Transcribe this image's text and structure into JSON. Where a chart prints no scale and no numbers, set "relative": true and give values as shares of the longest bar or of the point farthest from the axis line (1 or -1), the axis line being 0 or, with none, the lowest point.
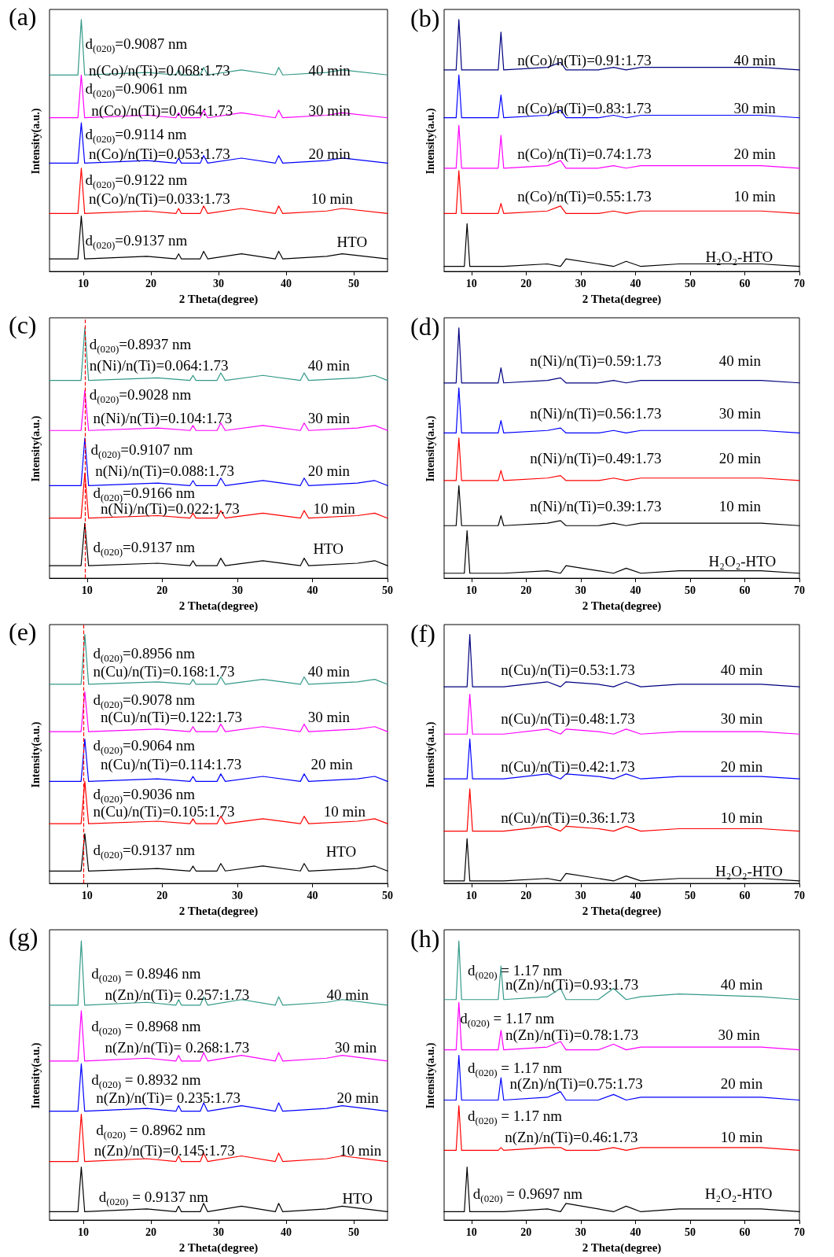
{
  "chart_data": [
    {
      "type": "line",
      "title": "(a)",
      "xlabel": "2 Theta(degree)",
      "ylabel": "Intensity(a.u.)",
      "relative": true,
      "tick_labels": "x",
      "xlim": [
        5,
        55
      ],
      "xticks": [
        10,
        20,
        30,
        40,
        50
      ],
      "x": [
        5,
        9.2,
        9.7,
        10.2,
        19.4,
        23.7,
        24.1,
        24.5,
        27.3,
        27.8,
        28.4,
        33.4,
        38.4,
        38.9,
        39.5,
        46,
        48.3,
        55
      ],
      "series": [
        {
          "color": "#000000",
          "values": [
            0.05,
            0.05,
            0.22,
            0.05,
            0.06,
            0.05,
            0.07,
            0.05,
            0.05,
            0.08,
            0.05,
            0.07,
            0.05,
            0.08,
            0.05,
            0.06,
            0.07,
            0.05
          ]
        },
        {
          "color": "#ff0000",
          "values": [
            0.23,
            0.23,
            0.41,
            0.23,
            0.24,
            0.23,
            0.25,
            0.23,
            0.23,
            0.26,
            0.23,
            0.25,
            0.23,
            0.26,
            0.23,
            0.24,
            0.25,
            0.23
          ]
        },
        {
          "color": "#0000ff",
          "values": [
            0.43,
            0.43,
            0.59,
            0.43,
            0.44,
            0.43,
            0.45,
            0.43,
            0.43,
            0.46,
            0.43,
            0.45,
            0.43,
            0.46,
            0.43,
            0.44,
            0.45,
            0.43
          ]
        },
        {
          "color": "#ff00ff",
          "values": [
            0.61,
            0.61,
            0.78,
            0.61,
            0.62,
            0.61,
            0.63,
            0.61,
            0.61,
            0.64,
            0.61,
            0.63,
            0.61,
            0.64,
            0.61,
            0.62,
            0.63,
            0.61
          ]
        },
        {
          "color": "#339988",
          "values": [
            0.78,
            0.78,
            1,
            0.78,
            0.79,
            0.78,
            0.8,
            0.78,
            0.78,
            0.81,
            0.78,
            0.8,
            0.78,
            0.81,
            0.78,
            0.79,
            0.8,
            0.78
          ]
        }
      ],
      "annotations": [
        "d$_{(020)}$=0.9087 nm",
        "n(Co)/n(Ti)=0.068:1.73",
        "40 min",
        "d$_{(020)}$=0.9061 nm",
        "n(Co)/n(Ti)=0.064:1.73",
        "30 min",
        "d$_{(020)}$=0.9114 nm",
        "n(Co)/n(Ti)=0.053:1.73",
        "20 min",
        "d$_{(020)}$=0.9122 nm",
        "n(Co)/n(Ti)=0.033:1.73",
        "10 min",
        "d$_{(020)}$=0.9137 nm",
        "HTO"
      ]
    },
    {
      "type": "line",
      "title": "(b)",
      "xlabel": "2 Theta(degree)",
      "ylabel": "Intensity(a.u.)",
      "relative": true,
      "tick_labels": "x",
      "xlim": [
        5,
        70
      ],
      "xticks": [
        10,
        20,
        30,
        40,
        50,
        60,
        70
      ],
      "x": [
        5,
        7.2,
        7.7,
        8.2,
        8.7,
        9.2,
        9.7,
        10.2,
        14.9,
        15.4,
        15.9,
        23.9,
        26.3,
        27.3,
        33.2,
        36,
        38.3,
        41,
        48,
        63,
        70
      ],
      "series": [
        {
          "color": "#000000",
          "values": [
            0.02,
            0.02,
            0.02,
            0.02,
            0.02,
            0.19,
            0.02,
            0.02,
            0.02,
            0.02,
            0.02,
            0.03,
            0.02,
            0.05,
            0.03,
            0.02,
            0.04,
            0.02,
            0.03,
            0.03,
            0.02
          ]
        },
        {
          "color": "#ff0000",
          "values": [
            0.23,
            0.23,
            0.4,
            0.23,
            0.23,
            0.23,
            0.23,
            0.23,
            0.23,
            0.27,
            0.23,
            0.24,
            0.26,
            0.23,
            0.23,
            0.24,
            0.23,
            0.24,
            0.24,
            0.24,
            0.23
          ]
        },
        {
          "color": "#ff00ff",
          "values": [
            0.41,
            0.41,
            0.58,
            0.41,
            0.41,
            0.41,
            0.41,
            0.41,
            0.41,
            0.54,
            0.41,
            0.42,
            0.44,
            0.41,
            0.41,
            0.42,
            0.41,
            0.42,
            0.42,
            0.42,
            0.41
          ]
        },
        {
          "color": "#0000ff",
          "values": [
            0.61,
            0.61,
            0.78,
            0.61,
            0.61,
            0.61,
            0.61,
            0.61,
            0.61,
            0.7,
            0.61,
            0.62,
            0.64,
            0.61,
            0.61,
            0.62,
            0.61,
            0.62,
            0.62,
            0.62,
            0.61
          ]
        },
        {
          "color": "#000080",
          "values": [
            0.8,
            0.8,
            1,
            0.8,
            0.8,
            0.8,
            0.8,
            0.8,
            0.8,
            0.95,
            0.8,
            0.81,
            0.83,
            0.8,
            0.8,
            0.81,
            0.8,
            0.81,
            0.81,
            0.81,
            0.8
          ]
        }
      ],
      "annotations": [
        "n(Co)/n(Ti)=0.91:1.73",
        "40 min",
        "n(Co)/n(Ti)=0.83:1.73",
        "30 min",
        "n(Co)/n(Ti)=0.74:1.73",
        "20 min",
        "n(Co)/n(Ti)=0.55:1.73",
        "10 min",
        "H₂O₂-HTO"
      ]
    },
    {
      "type": "line",
      "title": "(c)",
      "xlabel": "2 Theta(degree)",
      "ylabel": "Intensity(a.u.)",
      "relative": true,
      "tick_labels": "x",
      "xlim": [
        5,
        50
      ],
      "xticks": [
        10,
        20,
        30,
        40,
        50
      ],
      "x": [
        5,
        9.2,
        9.7,
        10.2,
        19.4,
        23.7,
        24.1,
        24.5,
        27.3,
        27.8,
        28.4,
        33.4,
        38.4,
        38.9,
        39.5,
        46,
        48.3,
        50
      ],
      "ref_lines": [
        {
          "axis": "x",
          "value": 9.7,
          "color": "#ff0000",
          "line_style": "dashed"
        }
      ],
      "series": [
        {
          "color": "#000000",
          "values": [
            0.05,
            0.05,
            0.22,
            0.05,
            0.06,
            0.05,
            0.07,
            0.05,
            0.05,
            0.08,
            0.05,
            0.07,
            0.05,
            0.08,
            0.05,
            0.06,
            0.07,
            0.05
          ]
        },
        {
          "color": "#ff0000",
          "values": [
            0.24,
            0.24,
            0.42,
            0.24,
            0.25,
            0.24,
            0.26,
            0.24,
            0.24,
            0.27,
            0.24,
            0.26,
            0.24,
            0.27,
            0.24,
            0.25,
            0.26,
            0.24
          ]
        },
        {
          "color": "#0000ff",
          "values": [
            0.37,
            0.37,
            0.56,
            0.37,
            0.38,
            0.37,
            0.39,
            0.37,
            0.37,
            0.4,
            0.37,
            0.39,
            0.37,
            0.4,
            0.37,
            0.38,
            0.39,
            0.37
          ]
        },
        {
          "color": "#ff00ff",
          "values": [
            0.59,
            0.59,
            0.75,
            0.59,
            0.6,
            0.59,
            0.61,
            0.59,
            0.59,
            0.62,
            0.59,
            0.61,
            0.59,
            0.62,
            0.59,
            0.6,
            0.61,
            0.59
          ]
        },
        {
          "color": "#339988",
          "values": [
            0.79,
            0.79,
            1,
            0.79,
            0.8,
            0.79,
            0.81,
            0.79,
            0.79,
            0.82,
            0.79,
            0.81,
            0.79,
            0.82,
            0.79,
            0.8,
            0.81,
            0.79
          ]
        }
      ],
      "annotations": [
        "d$_{(020)}$=0.8937 nm",
        "n(Ni)/n(Ti)=0.064:1.73",
        "40 min",
        "d$_{(020)}$=0.9028 nm",
        "n(Ni)/n(Ti)=0.104:1.73",
        "30 min",
        "d$_{(020)}$=0.9107 nm",
        "n(Ni)/n(Ti)=0.088:1.73",
        "20 min",
        "d$_{(020)}$=0.9166 nm",
        "n(Ni)/n(Ti)=0.022:1.73",
        "10 min",
        "d$_{(020)}$=0.9137 nm",
        "HTO"
      ]
    },
    {
      "type": "line",
      "title": "(d)",
      "xlabel": "2 Theta(degree)",
      "ylabel": "Intensity(a.u.)",
      "relative": true,
      "tick_labels": "x",
      "xlim": [
        5,
        70
      ],
      "xticks": [
        10,
        20,
        30,
        40,
        50,
        60,
        70
      ],
      "x": [
        5,
        7.2,
        7.7,
        8.2,
        8.7,
        9.2,
        9.7,
        10.2,
        14.9,
        15.4,
        15.9,
        23.9,
        26.3,
        27.3,
        33.2,
        36,
        38.3,
        41,
        48,
        63,
        70
      ],
      "series": [
        {
          "color": "#000000",
          "values": [
            0.02,
            0.02,
            0.02,
            0.02,
            0.02,
            0.19,
            0.02,
            0.02,
            0.02,
            0.02,
            0.02,
            0.03,
            0.02,
            0.05,
            0.03,
            0.02,
            0.04,
            0.02,
            0.03,
            0.03,
            0.02
          ]
        },
        {
          "color": "#000000",
          "values": [
            0.21,
            0.21,
            0.37,
            0.21,
            0.21,
            0.21,
            0.21,
            0.21,
            0.21,
            0.25,
            0.21,
            0.22,
            0.23,
            0.21,
            0.21,
            0.22,
            0.21,
            0.22,
            0.22,
            0.22,
            0.21
          ]
        },
        {
          "color": "#ff0000",
          "values": [
            0.39,
            0.39,
            0.56,
            0.39,
            0.39,
            0.39,
            0.39,
            0.39,
            0.39,
            0.43,
            0.39,
            0.4,
            0.41,
            0.39,
            0.39,
            0.4,
            0.39,
            0.4,
            0.4,
            0.4,
            0.39
          ]
        },
        {
          "color": "#0000ff",
          "values": [
            0.58,
            0.58,
            0.76,
            0.58,
            0.58,
            0.58,
            0.58,
            0.58,
            0.58,
            0.63,
            0.58,
            0.59,
            0.6,
            0.58,
            0.58,
            0.59,
            0.58,
            0.59,
            0.59,
            0.59,
            0.58
          ]
        },
        {
          "color": "#000080",
          "values": [
            0.78,
            0.78,
            1,
            0.78,
            0.78,
            0.78,
            0.78,
            0.78,
            0.78,
            0.84,
            0.78,
            0.79,
            0.8,
            0.78,
            0.78,
            0.79,
            0.78,
            0.79,
            0.79,
            0.79,
            0.78
          ]
        }
      ],
      "annotations": [
        "n(Ni)/n(Ti)=0.59:1.73",
        "40 min",
        "n(Ni)/n(Ti)=0.56:1.73",
        "30 min",
        "n(Ni)/n(Ti)=0.49:1.73",
        "20 min",
        "n(Ni)/n(Ti)=0.39:1.73",
        "10 min",
        "H₂O₂-HTO"
      ]
    },
    {
      "type": "line",
      "title": "(e)",
      "xlabel": "2 Theta(degree)",
      "ylabel": "Intensity(a.u.)",
      "relative": true,
      "tick_labels": "x",
      "xlim": [
        5,
        50
      ],
      "xticks": [
        10,
        20,
        30,
        40,
        50
      ],
      "x": [
        5,
        9.2,
        9.7,
        10.2,
        19.4,
        23.7,
        24.1,
        24.5,
        27.3,
        27.8,
        28.4,
        33.4,
        38.4,
        38.9,
        39.5,
        46,
        48.3,
        50
      ],
      "ref_lines": [
        {
          "axis": "x",
          "value": 9.5,
          "color": "#ff0000",
          "line_style": "dashed"
        }
      ],
      "series": [
        {
          "color": "#000000",
          "values": [
            0.05,
            0.05,
            0.2,
            0.05,
            0.06,
            0.05,
            0.07,
            0.05,
            0.05,
            0.08,
            0.05,
            0.07,
            0.05,
            0.08,
            0.05,
            0.06,
            0.07,
            0.05
          ]
        },
        {
          "color": "#ff0000",
          "values": [
            0.24,
            0.24,
            0.41,
            0.24,
            0.25,
            0.24,
            0.26,
            0.24,
            0.24,
            0.27,
            0.24,
            0.26,
            0.24,
            0.27,
            0.24,
            0.25,
            0.26,
            0.24
          ]
        },
        {
          "color": "#0000ff",
          "values": [
            0.41,
            0.41,
            0.58,
            0.41,
            0.42,
            0.41,
            0.43,
            0.41,
            0.41,
            0.44,
            0.41,
            0.43,
            0.41,
            0.44,
            0.41,
            0.42,
            0.43,
            0.41
          ]
        },
        {
          "color": "#ff00ff",
          "values": [
            0.61,
            0.61,
            0.77,
            0.61,
            0.62,
            0.61,
            0.63,
            0.61,
            0.61,
            0.64,
            0.61,
            0.63,
            0.61,
            0.64,
            0.61,
            0.62,
            0.63,
            0.61
          ]
        },
        {
          "color": "#339988",
          "values": [
            0.8,
            0.8,
            1,
            0.8,
            0.81,
            0.8,
            0.82,
            0.8,
            0.8,
            0.83,
            0.8,
            0.82,
            0.8,
            0.83,
            0.8,
            0.81,
            0.82,
            0.8
          ]
        }
      ],
      "annotations": [
        "d$_{(020)}$=0.8956 nm",
        "n(Cu)/n(Ti)=0.168:1.73",
        "40 min",
        "d$_{(020)}$=0.9078 nm",
        "n(Cu)/n(Ti)=0.122:1.73",
        "30 min",
        "d$_{(020)}$=0.9064 nm",
        "n(Cu)/n(Ti)=0.114:1.73",
        "20 min",
        "d$_{(020)}$=0.9036 nm",
        "n(Cu)/n(Ti)=0.105:1.73",
        "10 min",
        "d$_{(020)}$=0.9137 nm",
        "HTO"
      ]
    },
    {
      "type": "line",
      "title": "(f)",
      "xlabel": "2 Theta(degree)",
      "ylabel": "Intensity(a.u.)",
      "relative": true,
      "tick_labels": "x",
      "xlim": [
        5,
        70
      ],
      "xticks": [
        10,
        20,
        30,
        40,
        50,
        60,
        70
      ],
      "x": [
        5,
        7.2,
        7.7,
        8.2,
        8.7,
        9.2,
        9.7,
        10.2,
        14.9,
        15.4,
        15.9,
        23.9,
        26.3,
        27.3,
        33.2,
        36,
        38.3,
        41,
        48,
        63,
        70
      ],
      "series": [
        {
          "color": "#000000",
          "values": [
            0.01,
            0.01,
            0.01,
            0.01,
            0.01,
            0.18,
            0.01,
            0.01,
            0.01,
            0.01,
            0.01,
            0.02,
            0.01,
            0.04,
            0.02,
            0.01,
            0.03,
            0.01,
            0.02,
            0.02,
            0.01
          ]
        },
        {
          "color": "#ff0000",
          "values": [
            0.21,
            0.21,
            0.21,
            0.21,
            0.21,
            0.21,
            0.38,
            0.21,
            0.21,
            0.21,
            0.21,
            0.23,
            0.21,
            0.23,
            0.22,
            0.21,
            0.23,
            0.21,
            0.22,
            0.22,
            0.21
          ]
        },
        {
          "color": "#0000ff",
          "values": [
            0.42,
            0.42,
            0.42,
            0.42,
            0.42,
            0.42,
            0.58,
            0.42,
            0.42,
            0.42,
            0.42,
            0.44,
            0.42,
            0.44,
            0.43,
            0.42,
            0.44,
            0.42,
            0.43,
            0.43,
            0.42
          ]
        },
        {
          "color": "#ff00ff",
          "values": [
            0.6,
            0.6,
            0.6,
            0.6,
            0.6,
            0.6,
            0.76,
            0.6,
            0.6,
            0.6,
            0.6,
            0.62,
            0.6,
            0.62,
            0.61,
            0.6,
            0.62,
            0.6,
            0.61,
            0.61,
            0.6
          ]
        },
        {
          "color": "#000080",
          "values": [
            0.79,
            0.79,
            0.79,
            0.79,
            0.79,
            0.79,
            1,
            0.79,
            0.79,
            0.79,
            0.79,
            0.81,
            0.79,
            0.81,
            0.8,
            0.79,
            0.81,
            0.79,
            0.8,
            0.8,
            0.79
          ]
        }
      ],
      "annotations": [
        "n(Cu)/n(Ti)=0.53:1.73",
        "40 min",
        "n(Cu)/n(Ti)=0.48:1.73",
        "30 min",
        "n(Cu)/n(Ti)=0.42:1.73",
        "20 min",
        "n(Cu)/n(Ti)=0.36:1.73",
        "10 min",
        "H₂O₂-HTO"
      ]
    },
    {
      "type": "line",
      "title": "(g)",
      "xlabel": "2 Theta(degree)",
      "ylabel": "Intensity(a.u.)",
      "relative": true,
      "tick_labels": "x",
      "xlim": [
        5,
        55
      ],
      "xticks": [
        10,
        20,
        30,
        40,
        50
      ],
      "x": [
        5,
        9.2,
        9.7,
        10.2,
        19.4,
        23.7,
        24.1,
        24.5,
        27.3,
        27.8,
        28.4,
        33.4,
        38.4,
        38.9,
        39.5,
        46,
        48.3,
        55
      ],
      "series": [
        {
          "color": "#000000",
          "values": [
            0.03,
            0.03,
            0.19,
            0.03,
            0.04,
            0.03,
            0.05,
            0.03,
            0.03,
            0.06,
            0.03,
            0.05,
            0.03,
            0.06,
            0.03,
            0.04,
            0.05,
            0.03
          ]
        },
        {
          "color": "#ff0000",
          "values": [
            0.21,
            0.21,
            0.38,
            0.21,
            0.22,
            0.21,
            0.23,
            0.21,
            0.21,
            0.24,
            0.21,
            0.23,
            0.21,
            0.24,
            0.21,
            0.22,
            0.23,
            0.21
          ]
        },
        {
          "color": "#0000ff",
          "values": [
            0.39,
            0.39,
            0.56,
            0.39,
            0.4,
            0.39,
            0.41,
            0.39,
            0.39,
            0.42,
            0.39,
            0.41,
            0.39,
            0.42,
            0.39,
            0.4,
            0.41,
            0.39
          ]
        },
        {
          "color": "#ff00ff",
          "values": [
            0.57,
            0.57,
            0.75,
            0.57,
            0.58,
            0.57,
            0.59,
            0.57,
            0.57,
            0.6,
            0.57,
            0.59,
            0.57,
            0.6,
            0.57,
            0.58,
            0.59,
            0.57
          ]
        },
        {
          "color": "#339988",
          "values": [
            0.77,
            0.77,
            1,
            0.77,
            0.78,
            0.77,
            0.79,
            0.77,
            0.77,
            0.8,
            0.77,
            0.79,
            0.77,
            0.8,
            0.77,
            0.78,
            0.79,
            0.77
          ]
        }
      ],
      "annotations": [
        "d$_{(020)}$ = 0.8946 nm",
        "n(Zn)/n(Ti)= 0.257:1.73",
        "40 min",
        "d$_{(020)}$ = 0.8968 nm",
        "n(Zn)/n(Ti)= 0.268:1.73",
        "30 min",
        "d$_{(020)}$ = 0.8932 nm",
        "n(Zn)/n(Ti)= 0.235:1.73",
        "20 min",
        "d$_{(020)}$ = 0.8962 nm",
        "n(Zn)/n(Ti)=0.145:1.73",
        "10 min",
        "d$_{(020)}$ = 0.9137 nm",
        "HTO"
      ]
    },
    {
      "type": "line",
      "title": "(h)",
      "xlabel": "2 Theta(degree)",
      "ylabel": "Intensity(a.u.)",
      "relative": true,
      "tick_labels": "x",
      "xlim": [
        5,
        70
      ],
      "xticks": [
        10,
        20,
        30,
        40,
        50,
        60,
        70
      ],
      "x": [
        5,
        7.2,
        7.7,
        8.2,
        8.7,
        9.2,
        9.7,
        10.2,
        14.9,
        15.4,
        15.9,
        23.9,
        26.3,
        27.3,
        33.2,
        36,
        38.3,
        41,
        48,
        63,
        70
      ],
      "series": [
        {
          "color": "#000000",
          "values": [
            0.03,
            0.03,
            0.03,
            0.03,
            0.03,
            0.19,
            0.03,
            0.03,
            0.03,
            0.03,
            0.03,
            0.04,
            0.03,
            0.06,
            0.04,
            0.03,
            0.05,
            0.03,
            0.04,
            0.04,
            0.03
          ]
        },
        {
          "color": "#ff0000",
          "values": [
            0.25,
            0.25,
            0.41,
            0.25,
            0.25,
            0.25,
            0.25,
            0.25,
            0.25,
            0.26,
            0.25,
            0.26,
            0.26,
            0.25,
            0.25,
            0.26,
            0.25,
            0.26,
            0.26,
            0.26,
            0.25
          ]
        },
        {
          "color": "#0000ff",
          "values": [
            0.43,
            0.43,
            0.59,
            0.43,
            0.43,
            0.43,
            0.43,
            0.43,
            0.43,
            0.51,
            0.43,
            0.44,
            0.46,
            0.43,
            0.43,
            0.45,
            0.43,
            0.44,
            0.44,
            0.44,
            0.43
          ]
        },
        {
          "color": "#ff00ff",
          "values": [
            0.61,
            0.61,
            0.78,
            0.61,
            0.61,
            0.61,
            0.61,
            0.61,
            0.61,
            0.68,
            0.61,
            0.62,
            0.64,
            0.61,
            0.61,
            0.63,
            0.61,
            0.62,
            0.62,
            0.62,
            0.61
          ]
        },
        {
          "color": "#339988",
          "values": [
            0.79,
            0.79,
            1,
            0.79,
            0.79,
            0.79,
            0.79,
            0.79,
            0.79,
            0.91,
            0.79,
            0.8,
            0.83,
            0.79,
            0.79,
            0.83,
            0.79,
            0.8,
            0.81,
            0.8,
            0.79
          ]
        }
      ],
      "annotations": [
        "d$_{(020)}$ = 1.17 nm",
        "n(Zn)/n(Ti)=0.93:1.73",
        "40 min",
        "d$_{(020)}$ = 1.17 nm",
        "n(Zn)/n(Ti)=0.78:1.73",
        "30 min",
        "d$_{(020)}$ = 1.17 nm",
        "n(Zn)/n(Ti)=0.75:1.73",
        "20 min",
        "d$_{(020)}$ = 1.17 nm",
        "n(Zn)/n(Ti)=0.46:1.73",
        "10 min",
        "d$_{(020)}$ = 0.9697 nm",
        "H₂O₂-HTO"
      ]
    }
  ]
}
